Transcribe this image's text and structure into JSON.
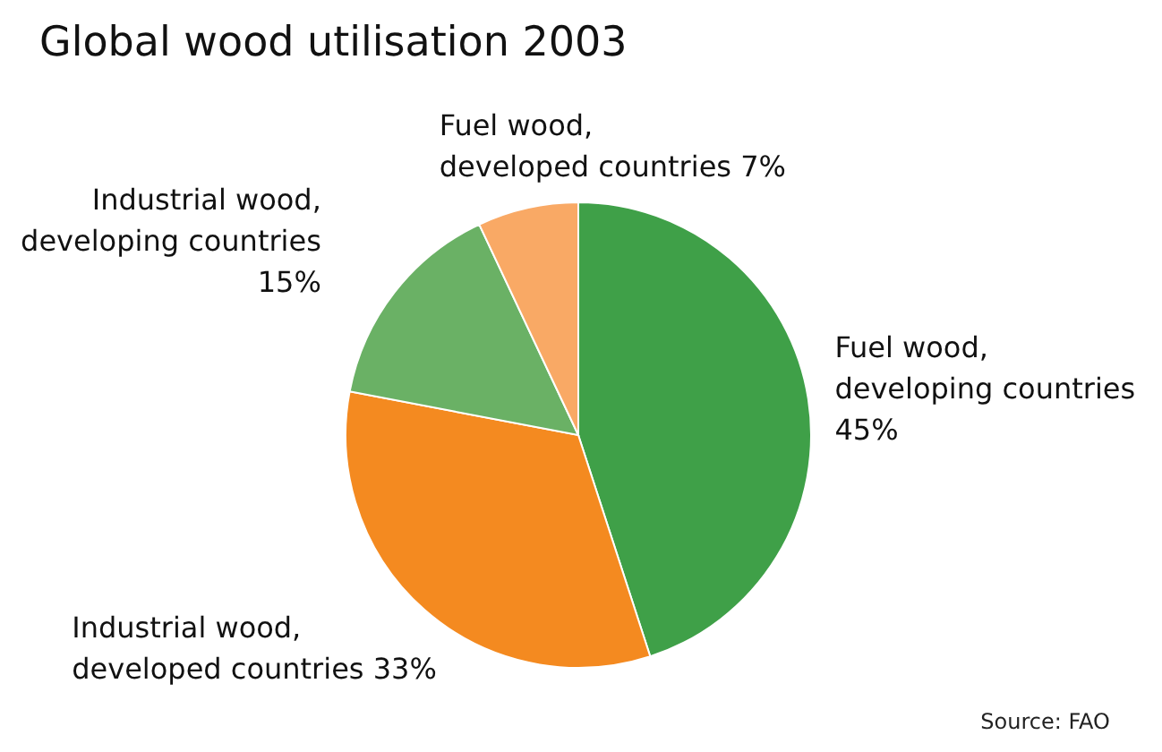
{
  "chart_data": {
    "type": "pie",
    "title": "Global wood utilisation 2003",
    "categories": [
      "Fuel wood, developing countries",
      "Industrial wood, developed countries",
      "Industrial wood, developing countries",
      "Fuel wood, developed countries"
    ],
    "values": [
      45,
      33,
      15,
      7
    ],
    "colors": [
      "#3fa048",
      "#f48a20",
      "#6ab165",
      "#f9a965"
    ],
    "value_labels": [
      "45%",
      "33%",
      "15%",
      "7%"
    ],
    "annotations": [
      "Source: FAO"
    ]
  }
}
